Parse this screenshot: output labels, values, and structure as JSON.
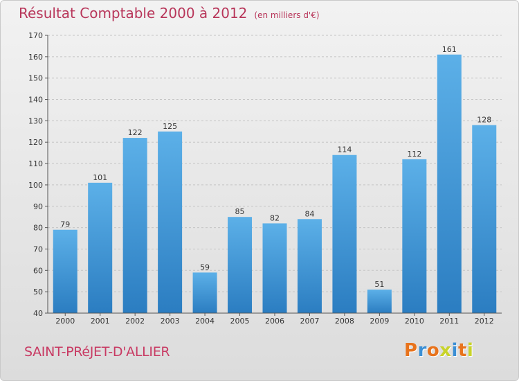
{
  "header": {
    "title": "Résultat Comptable 2000 à 2012",
    "subtitle": "(en milliers d'€)"
  },
  "footer": {
    "commune": "SAINT-PRéJET-D'ALLIER",
    "logo": "Proxiti"
  },
  "colors": {
    "title": "#b8365a",
    "bar_top": "#5cb0e8",
    "bar_bottom": "#2b7dc1",
    "logo_letters": [
      "#e8731c",
      "#3b8fd4",
      "#e8731c",
      "#c8d32a",
      "#3b8fd4",
      "#e8731c",
      "#c8d32a"
    ]
  },
  "chart_data": {
    "type": "bar",
    "title": "Résultat Comptable 2000 à 2012",
    "subtitle": "(en milliers d'€)",
    "categories": [
      "2000",
      "2001",
      "2002",
      "2003",
      "2004",
      "2005",
      "2006",
      "2007",
      "2008",
      "2009",
      "2010",
      "2011",
      "2012"
    ],
    "values": [
      79,
      101,
      122,
      125,
      59,
      85,
      82,
      84,
      114,
      51,
      112,
      161,
      128
    ],
    "ylim": [
      40,
      170
    ],
    "yticks": [
      40,
      50,
      60,
      70,
      80,
      90,
      100,
      110,
      120,
      130,
      140,
      150,
      160,
      170
    ],
    "grid": true,
    "legend": "none"
  }
}
